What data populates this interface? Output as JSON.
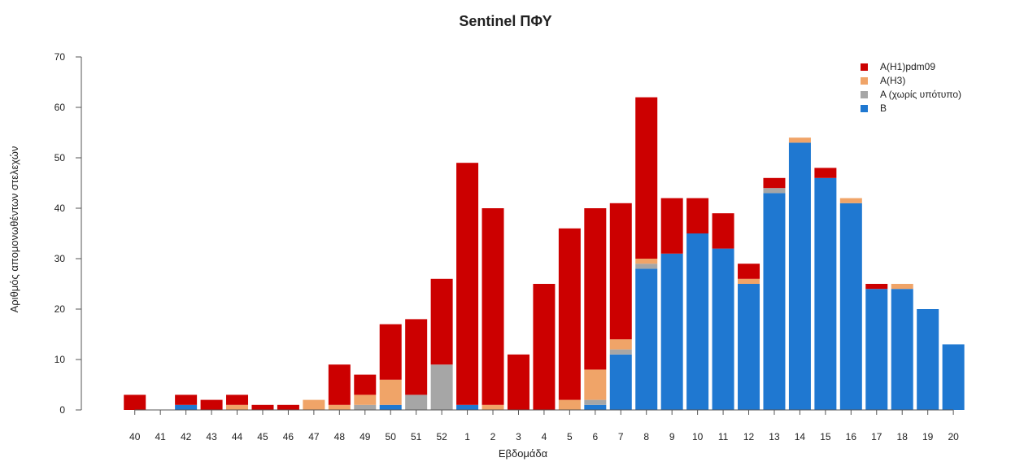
{
  "chart_data": {
    "type": "bar",
    "stacked": true,
    "title": "Sentinel ΠΦΥ",
    "xlabel": "Εβδομάδα",
    "ylabel": "Αριθμός απομονωθέντων στελεχών",
    "ylim": [
      0,
      70
    ],
    "yticks": [
      0,
      10,
      20,
      30,
      40,
      50,
      60,
      70
    ],
    "grid": false,
    "legend_position": "top-right",
    "categories": [
      "40",
      "41",
      "42",
      "43",
      "44",
      "45",
      "46",
      "47",
      "48",
      "49",
      "50",
      "51",
      "52",
      "1",
      "2",
      "3",
      "4",
      "5",
      "6",
      "7",
      "8",
      "9",
      "10",
      "11",
      "12",
      "13",
      "14",
      "15",
      "16",
      "17",
      "18",
      "19",
      "20"
    ],
    "series": [
      {
        "name": "B",
        "color": "#1f78d1",
        "values": [
          0,
          0,
          1,
          0,
          0,
          0,
          0,
          0,
          0,
          0,
          1,
          0,
          0,
          1,
          0,
          0,
          0,
          0,
          1,
          11,
          28,
          31,
          35,
          32,
          25,
          43,
          53,
          46,
          41,
          24,
          24,
          20,
          13
        ]
      },
      {
        "name": "A (χωρίς υπότυπο)",
        "color": "#a6a6a6",
        "values": [
          0,
          0,
          0,
          0,
          0,
          0,
          0,
          0,
          0,
          1,
          0,
          3,
          9,
          0,
          0,
          0,
          0,
          0,
          1,
          1,
          1,
          0,
          0,
          0,
          0,
          1,
          0,
          0,
          0,
          0,
          0,
          0,
          0
        ]
      },
      {
        "name": "A(H3)",
        "color": "#f0a468",
        "values": [
          0,
          0,
          0,
          0,
          1,
          0,
          0,
          2,
          1,
          2,
          5,
          0,
          0,
          0,
          1,
          0,
          0,
          2,
          6,
          2,
          1,
          0,
          0,
          0,
          1,
          0,
          1,
          0,
          1,
          0,
          1,
          0,
          0
        ]
      },
      {
        "name": "A(H1)pdm09",
        "color": "#cc0000",
        "values": [
          3,
          0,
          2,
          2,
          2,
          1,
          1,
          0,
          8,
          4,
          11,
          15,
          17,
          48,
          39,
          11,
          25,
          34,
          32,
          27,
          32,
          11,
          7,
          7,
          3,
          2,
          0,
          2,
          0,
          1,
          0,
          0,
          0
        ]
      }
    ],
    "legend_order": [
      "A(H1)pdm09",
      "A(H3)",
      "A (χωρίς υπότυπο)",
      "B"
    ]
  }
}
